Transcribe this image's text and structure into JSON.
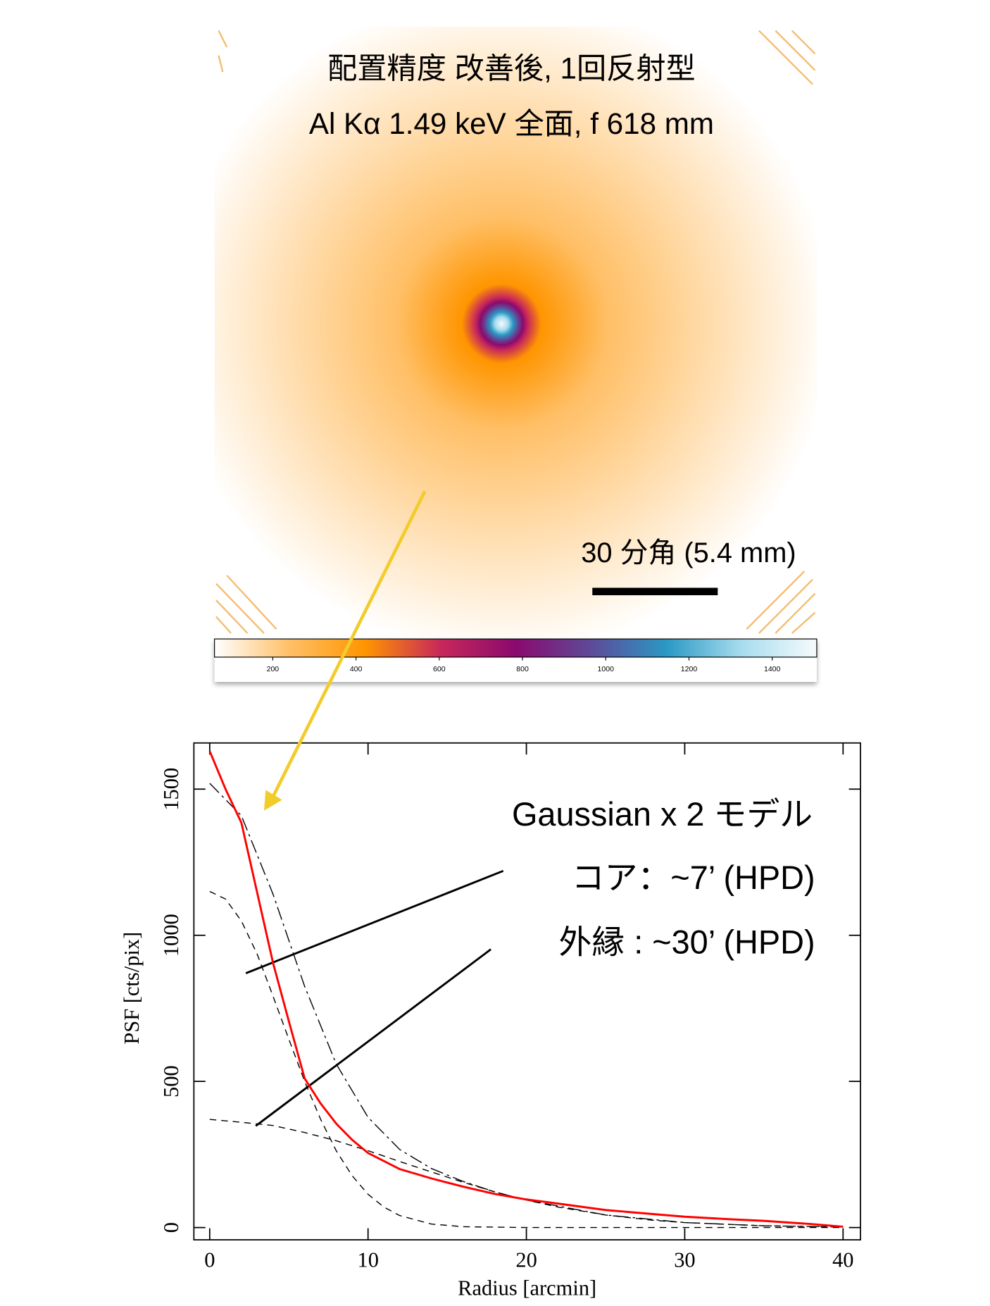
{
  "image": {
    "title_lines": [
      "配置精度 改善後, 1回反射型",
      "Al Kα 1.49 keV 全面, f 618 mm"
    ],
    "scale_bar_label": "30 分角 (5.4 mm)",
    "colorbar": {
      "lim": [
        60,
        1507
      ],
      "ticks": [
        200,
        400,
        600,
        800,
        1000,
        1200,
        1400
      ],
      "colors": [
        "#ffffff",
        "#ffbf66",
        "#ff9500",
        "#c8285a",
        "#8a0a6e",
        "#5e4a98",
        "#2a98c4",
        "#a8dcee",
        "#f6fbfd"
      ]
    }
  },
  "chart_data": {
    "type": "line",
    "xlabel": "Radius [arcmin]",
    "ylabel": "PSF [cts/pix]",
    "xlim": [
      -1,
      41.1
    ],
    "ylim": [
      -42,
      1658
    ],
    "xticks": [
      0,
      10,
      20,
      30,
      40
    ],
    "yticks": [
      0,
      500,
      1000,
      1500
    ],
    "series": [
      {
        "color": "#ff0000",
        "style": "solid",
        "x": [
          0,
          1,
          2,
          3,
          4,
          5,
          6,
          7,
          8,
          9,
          10,
          12,
          14,
          16,
          18,
          20,
          22,
          25,
          28,
          30,
          33,
          35,
          38,
          40
        ],
        "values": [
          1630,
          1500,
          1385,
          1145,
          905,
          705,
          510,
          425,
          355,
          300,
          255,
          200,
          168,
          140,
          115,
          96,
          82,
          60,
          46,
          37,
          28,
          23,
          12,
          3
        ]
      },
      {
        "color": "#000000",
        "style": "dashed",
        "x": [
          0,
          1,
          2,
          3,
          4,
          5,
          6,
          7,
          8,
          9,
          10,
          11,
          12,
          14,
          16,
          20,
          40
        ],
        "values": [
          1150,
          1124,
          1049,
          935,
          791,
          644,
          500,
          371,
          262,
          177,
          114,
          70,
          41,
          12,
          3,
          0,
          0
        ]
      },
      {
        "color": "#000000",
        "style": "dashed",
        "x": [
          0,
          2,
          4,
          6,
          8,
          10,
          12,
          14,
          16,
          18,
          20,
          22,
          25,
          28,
          30,
          35,
          40
        ],
        "values": [
          370,
          360,
          349,
          325,
          297,
          263,
          226,
          190,
          155,
          122,
          94,
          70,
          43,
          25,
          17,
          6,
          2
        ]
      },
      {
        "color": "#000000",
        "style": "dashdot",
        "x": [
          0,
          2,
          4,
          6,
          8,
          10,
          12,
          14,
          16,
          18,
          20,
          25,
          30,
          35,
          40
        ],
        "values": [
          1520,
          1409,
          1140,
          825,
          559,
          377,
          267,
          202,
          158,
          122,
          94,
          43,
          17,
          6,
          2
        ]
      }
    ],
    "annotations": [
      "Gaussian x 2 モデル",
      "コア：~7’ (HPD)",
      "外縁 : ~30’ (HPD)"
    ]
  }
}
